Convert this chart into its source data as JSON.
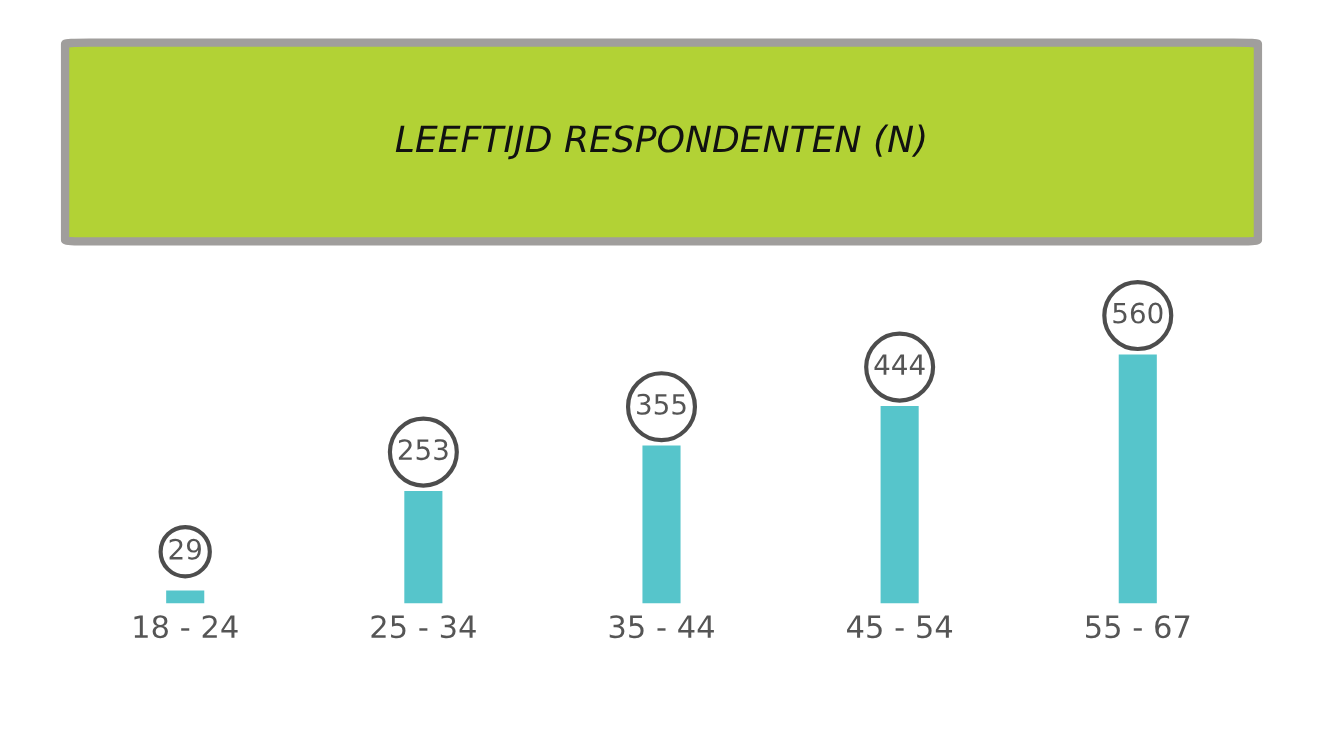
{
  "chart_data": {
    "type": "bar",
    "title": "LEEFTIJD RESPONDENTEN (N)",
    "categories": [
      "18 - 24",
      "25 - 34",
      "35 - 44",
      "45 - 54",
      "55 - 67"
    ],
    "values": [
      29,
      253,
      355,
      444,
      560
    ],
    "color": "#56c5cb",
    "data_labels": true,
    "grid": false,
    "legend": false
  }
}
